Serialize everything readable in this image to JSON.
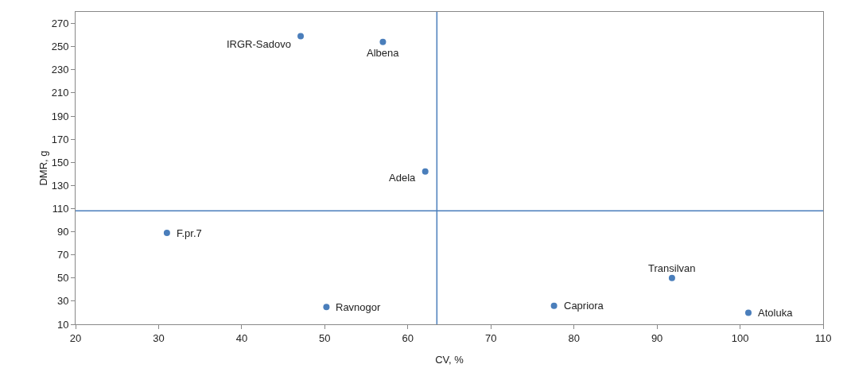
{
  "chart_data": {
    "type": "scatter",
    "xlabel": "CV, %",
    "ylabel": "DMR, g",
    "x": [
      47.1,
      57.0,
      62.1,
      31.0,
      50.2,
      77.6,
      91.8,
      101.0
    ],
    "series": [
      {
        "color": "#4a7ebb",
        "values": [
          259,
          254,
          142,
          89,
          25,
          26,
          50,
          20
        ]
      }
    ],
    "marker": "circle",
    "grid": false,
    "xlim": [
      20,
      110
    ],
    "xticks": [
      20,
      30,
      40,
      50,
      60,
      70,
      80,
      90,
      100,
      110
    ],
    "ylim": [
      10,
      280
    ],
    "yticks": [
      10,
      30,
      50,
      70,
      90,
      110,
      130,
      150,
      170,
      190,
      210,
      230,
      250,
      270
    ],
    "ref_lines": [
      {
        "axis": "x",
        "value": 63.5,
        "color": "#4a7ebb"
      },
      {
        "axis": "y",
        "value": 108,
        "color": "#4a7ebb"
      }
    ],
    "annotations": [
      {
        "text": "IRGR-Sadovo",
        "x": 47.1,
        "y": 259
      },
      {
        "text": "Albena",
        "x": 57.0,
        "y": 254
      },
      {
        "text": "Adela",
        "x": 62.1,
        "y": 142
      },
      {
        "text": "F.pr.7",
        "x": 31.0,
        "y": 89
      },
      {
        "text": "Ravnogor",
        "x": 50.2,
        "y": 25
      },
      {
        "text": "Capriora",
        "x": 77.6,
        "y": 26
      },
      {
        "text": "Transilvan",
        "x": 91.8,
        "y": 50
      },
      {
        "text": "Atoluka",
        "x": 101.0,
        "y": 20
      }
    ]
  }
}
